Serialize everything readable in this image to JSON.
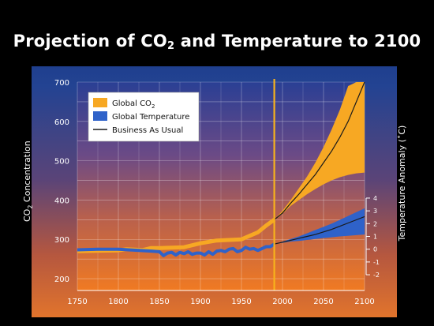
{
  "title": {
    "prefix": "Projection of CO",
    "sub": "2",
    "suffix": " and Temperature to 2100"
  },
  "chart_data": {
    "type": "line",
    "title": "Projection of CO2 and Temperature to 2100",
    "xlim": [
      1750,
      2100
    ],
    "x_ticks": [
      1750,
      1800,
      1850,
      1900,
      1950,
      2000,
      2050,
      2100
    ],
    "y_left": {
      "label_prefix": "CO",
      "label_sub": "2",
      "label_suffix": " Concentration",
      "lim": [
        170,
        700
      ],
      "ticks": [
        200,
        300,
        400,
        500,
        600,
        700
      ]
    },
    "y_right": {
      "label": "Temperature Anomaly (˚C)",
      "lim": [
        -2,
        4
      ],
      "ticks": [
        -2,
        -1,
        0,
        1,
        2,
        3,
        4
      ],
      "tick_labels": [
        "-2",
        "-1",
        "0",
        "1",
        "2",
        "3",
        "4"
      ],
      "range_co2": [
        210,
        405
      ]
    },
    "grid": true,
    "vertical_marker_year": 1990,
    "legend": {
      "placement": "top-left",
      "entries": [
        {
          "label": "Global CO",
          "sub": "2",
          "color": "#f7a823",
          "kind": "box"
        },
        {
          "label": "Global Temperature",
          "sub": "",
          "color": "#2f62c9",
          "kind": "box"
        },
        {
          "label": "Business As Usual",
          "sub": "",
          "color": "#1a1a1a",
          "kind": "line"
        }
      ]
    },
    "series": [
      {
        "name": "Global CO2",
        "x": [
          1750,
          1800,
          1810,
          1830,
          1840,
          1850,
          1880,
          1900,
          1920,
          1950,
          1970,
          1980,
          1990
        ],
        "y": [
          270,
          272,
          275,
          273,
          278,
          278,
          280,
          290,
          297,
          300,
          318,
          335,
          350
        ]
      },
      {
        "name": "Global CO2 projection band",
        "x": [
          1990,
          2000,
          2010,
          2020,
          2030,
          2040,
          2050,
          2060,
          2070,
          2080,
          2090,
          2100
        ],
        "y_low": [
          350,
          365,
          385,
          400,
          415,
          428,
          440,
          450,
          458,
          464,
          468,
          470
        ],
        "y_high": [
          350,
          373,
          400,
          430,
          460,
          495,
          535,
          580,
          630,
          690,
          700,
          700
        ]
      },
      {
        "name": "Global Temperature",
        "x": [
          1750,
          1775,
          1800,
          1825,
          1840,
          1850,
          1855,
          1860,
          1865,
          1870,
          1875,
          1880,
          1885,
          1890,
          1895,
          1900,
          1905,
          1910,
          1915,
          1920,
          1925,
          1930,
          1935,
          1940,
          1945,
          1950,
          1955,
          1960,
          1965,
          1970,
          1975,
          1980,
          1985,
          1990
        ],
        "y": [
          -0.05,
          0,
          0,
          -0.1,
          -0.15,
          -0.2,
          -0.5,
          -0.3,
          -0.25,
          -0.45,
          -0.25,
          -0.35,
          -0.2,
          -0.4,
          -0.3,
          -0.3,
          -0.45,
          -0.2,
          -0.4,
          -0.15,
          -0.1,
          -0.2,
          0,
          0.05,
          -0.2,
          -0.1,
          0.15,
          0,
          0.05,
          -0.1,
          0.05,
          0.2,
          0.2,
          0.4
        ]
      },
      {
        "name": "Global Temperature projection band",
        "x": [
          1990,
          2000,
          2010,
          2020,
          2030,
          2040,
          2050,
          2060,
          2070,
          2080,
          2090,
          2100
        ],
        "y_low": [
          0.4,
          0.5,
          0.6,
          0.65,
          0.72,
          0.8,
          0.87,
          0.93,
          1.0,
          1.05,
          1.1,
          1.15
        ],
        "y_high": [
          0.4,
          0.6,
          0.8,
          1.0,
          1.25,
          1.5,
          1.75,
          2.0,
          2.3,
          2.6,
          2.9,
          3.2
        ]
      },
      {
        "name": "Business As Usual (CO2)",
        "x": [
          1990,
          2000,
          2010,
          2020,
          2030,
          2040,
          2050,
          2060,
          2070,
          2080,
          2090,
          2100
        ],
        "y": [
          350,
          367,
          392,
          415,
          440,
          465,
          495,
          525,
          560,
          600,
          650,
          710
        ]
      },
      {
        "name": "Business As Usual (Temperature)",
        "x": [
          1990,
          2000,
          2010,
          2020,
          2030,
          2040,
          2050,
          2060,
          2070,
          2080,
          2090,
          2100
        ],
        "y": [
          0.4,
          0.55,
          0.7,
          0.85,
          1.0,
          1.15,
          1.35,
          1.55,
          1.8,
          2.05,
          2.3,
          2.55
        ]
      }
    ]
  }
}
